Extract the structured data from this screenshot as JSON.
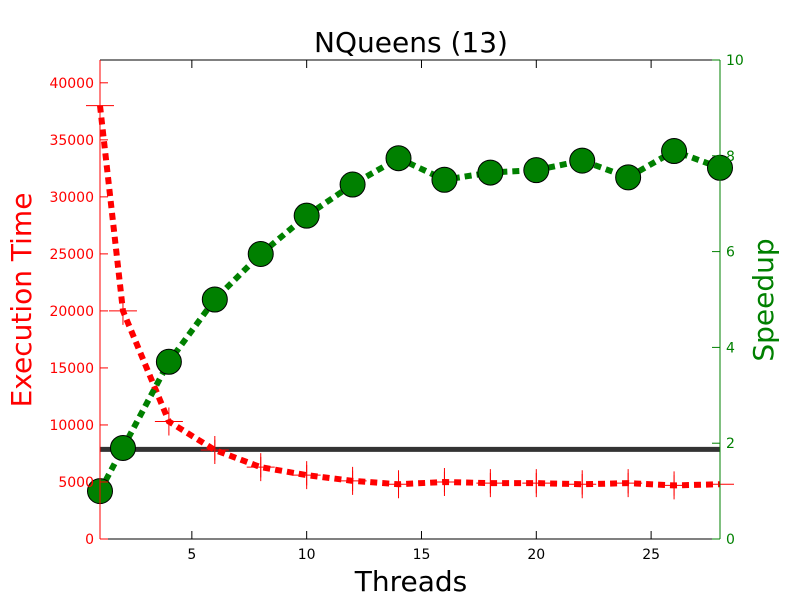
{
  "chart_data": {
    "type": "line",
    "title": "NQueens (13)",
    "xlabel": "Threads",
    "ylabel_left": "Execution Time",
    "ylabel_right": "Speedup",
    "xlim": [
      1,
      28
    ],
    "ylim_left": [
      0,
      42000
    ],
    "ylim_right": [
      0,
      10
    ],
    "x_ticks": [
      5,
      10,
      15,
      20,
      25
    ],
    "y_ticks_left": [
      0,
      5000,
      10000,
      15000,
      20000,
      25000,
      30000,
      35000,
      40000
    ],
    "y_ticks_right": [
      0,
      2,
      4,
      6,
      8,
      10
    ],
    "grid": false,
    "colors": {
      "execution_time": "#ff0000",
      "speedup": "#008000",
      "reference": "#333333"
    },
    "series": [
      {
        "axis": "left",
        "style": "dashed-plus-markers",
        "x": [
          1,
          2,
          4,
          6,
          8,
          10,
          12,
          14,
          16,
          18,
          20,
          22,
          24,
          26,
          28
        ],
        "values": [
          38000,
          20000,
          10300,
          7800,
          6300,
          5600,
          5100,
          4800,
          5000,
          4900,
          4900,
          4800,
          4900,
          4700,
          4800
        ],
        "error": [
          0,
          0,
          0,
          900,
          900,
          900,
          900,
          900,
          900,
          900,
          900,
          900,
          900,
          900,
          0
        ]
      },
      {
        "axis": "right",
        "style": "dashed-circle-markers",
        "x": [
          1,
          2,
          4,
          6,
          8,
          10,
          12,
          14,
          16,
          18,
          20,
          22,
          24,
          26,
          28
        ],
        "values": [
          1.0,
          1.9,
          3.7,
          5.0,
          5.95,
          6.75,
          7.4,
          7.95,
          7.5,
          7.65,
          7.7,
          7.9,
          7.55,
          8.1,
          7.75
        ]
      },
      {
        "axis": "right",
        "style": "solid-reference",
        "x": [
          1,
          28
        ],
        "values": [
          1.87,
          1.87
        ]
      }
    ]
  }
}
